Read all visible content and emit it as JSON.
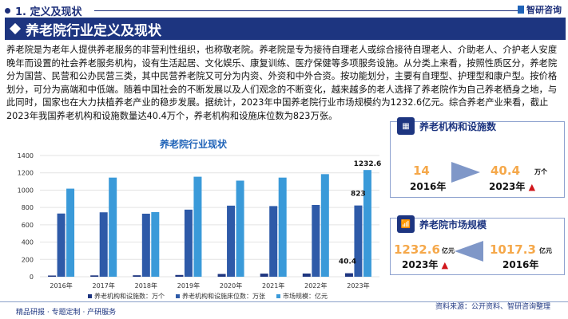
{
  "section": "1. 定义及现状",
  "brand": "智研咨询",
  "title": "养老院行业定义及现状",
  "paragraph": "养老院是为老年人提供养老服务的非营利性组织，也称敬老院。养老院是专为接待自理老人或综合接待自理老人、介助老人、介护老人安度晚年而设置的社会养老服务机构，设有生活起居、文化娱乐、康复训练、医疗保健等多项服务设施。从分类上来看，按照性质区分，养老院分为国营、民营和公办民营三类，其中民营养老院又可分为内资、外资和中外合资。按功能划分，主要有自理型、护理型和康户型。按价格划分，可分为高端和中低端。随着中国社会的不断发展以及人们观念的不断变化，越来越多的老人选择了养老院作为自己养老栖身之地，与此同时，国家也在大力扶植养老产业的稳步发展。据统计，2023年中国养老院行业市场规模约为1232.6亿元。综合养老产业来看，截止2023年我国养老机构和设施数量达40.4万个，养老机构和设施床位数为823万张。",
  "chart_data": {
    "type": "bar",
    "title": "养老院行业现状",
    "categories": [
      "2016年",
      "2017年",
      "2018年",
      "2019年",
      "2020年",
      "2021年",
      "2022年",
      "2023年"
    ],
    "ylim": [
      0,
      1400
    ],
    "yticks": [
      0,
      200,
      400,
      600,
      800,
      1000,
      1200,
      1400
    ],
    "grid": true,
    "legend_position": "bottom",
    "series": [
      {
        "name": "养老机构和设施数：万个",
        "color": "#1d3580",
        "values": [
          14,
          15.5,
          16.8,
          20.4,
          31.9,
          35.8,
          36.9,
          40.4
        ]
      },
      {
        "name": "养老机构和设施床位数：万张",
        "color": "#2e5aa8",
        "values": [
          730,
          744,
          728,
          775,
          821,
          816,
          829,
          823
        ]
      },
      {
        "name": "市场规模：亿元",
        "color": "#3a9ad9",
        "values": [
          1017.3,
          1145,
          746,
          1155,
          1110,
          1145,
          1185,
          1232.6
        ]
      }
    ],
    "data_labels": [
      {
        "series": 0,
        "index": 7,
        "text": "40.4"
      },
      {
        "series": 1,
        "index": 7,
        "text": "823"
      },
      {
        "series": 2,
        "index": 7,
        "text": "1232.6"
      }
    ]
  },
  "card1": {
    "title": "养老机构和设施数",
    "from_value": "14",
    "from_unit": "万个",
    "from_year": "2016年",
    "to_value": "40.4",
    "to_unit": "万个",
    "to_year": "2023年"
  },
  "card2": {
    "title": "养老院市场规模",
    "from_value": "1017.3",
    "from_unit": "亿元",
    "from_year": "2016年",
    "to_value": "1232.6",
    "to_unit": "亿元",
    "to_year": "2023年"
  },
  "footer": "精品研报 · 专题定制 · 产研服务",
  "source": "资料来源：公开资料、智研咨询整理"
}
